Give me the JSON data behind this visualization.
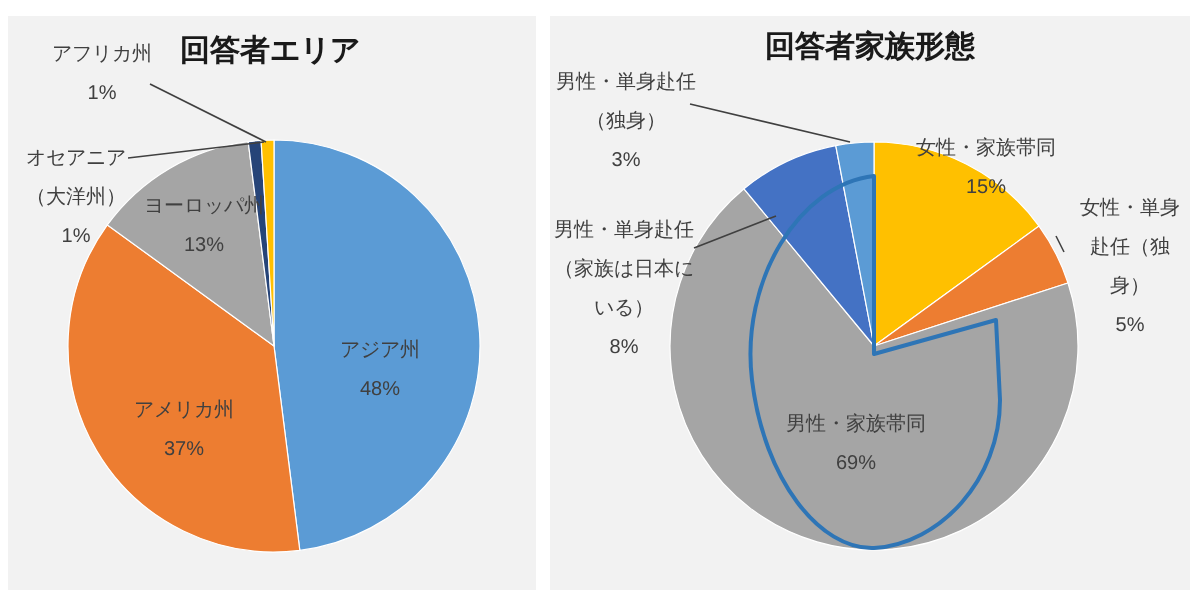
{
  "chart_data": [
    {
      "type": "pie",
      "title": "回答者エリア",
      "categories": [
        "アジア州",
        "アメリカ州",
        "ヨーロッパ州",
        "オセアニア（大洋州）",
        "アフリカ州"
      ],
      "values": [
        48,
        37,
        13,
        1,
        1
      ],
      "colors": [
        "#5b9bd5",
        "#ed7d31",
        "#a5a5a5",
        "#264478",
        "#ffc000"
      ],
      "value_labels": [
        "48%",
        "37%",
        "13%",
        "1%",
        "1%"
      ]
    },
    {
      "type": "pie",
      "title": "回答者家族形態",
      "categories": [
        "女性・家族帯同",
        "女性・単身赴任（独身）",
        "男性・家族帯同",
        "男性・単身赴任（家族は日本にいる）",
        "男性・単身赴任（独身）"
      ],
      "values": [
        15,
        5,
        69,
        8,
        3
      ],
      "colors": [
        "#ffc000",
        "#ed7d31",
        "#a5a5a5",
        "#4472c4",
        "#5b9bd5"
      ],
      "value_labels": [
        "15%",
        "5%",
        "69%",
        "8%",
        "3%"
      ]
    }
  ]
}
